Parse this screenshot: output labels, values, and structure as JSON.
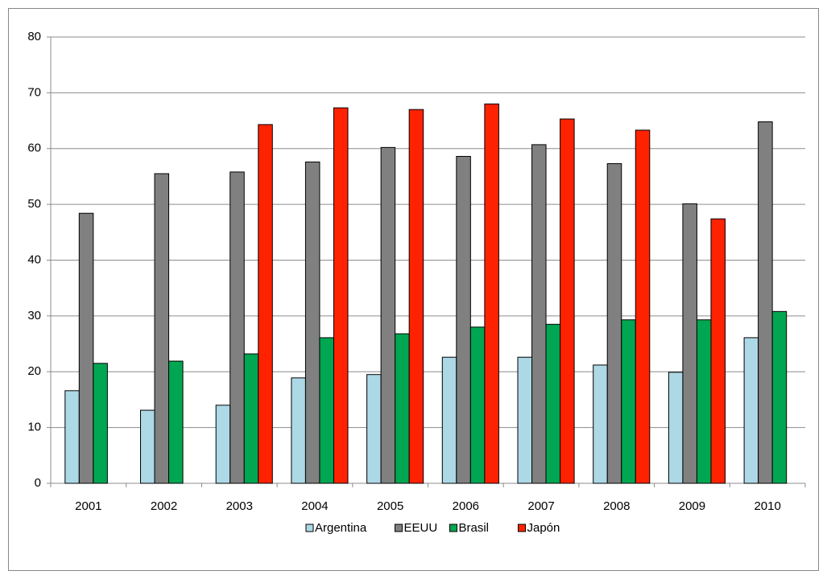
{
  "chart_data": {
    "type": "bar",
    "categories": [
      "2001",
      "2002",
      "2003",
      "2004",
      "2005",
      "2006",
      "2007",
      "2008",
      "2009",
      "2010"
    ],
    "series": [
      {
        "name": "Argentina",
        "color": "#add8e6",
        "values": [
          16.6,
          13.1,
          14.0,
          18.9,
          19.5,
          22.6,
          22.6,
          21.2,
          19.9,
          26.1
        ]
      },
      {
        "name": "EEUU",
        "color": "#808080",
        "values": [
          48.4,
          55.5,
          55.8,
          57.6,
          60.2,
          58.6,
          60.7,
          57.3,
          50.1,
          64.8
        ]
      },
      {
        "name": "Brasil",
        "color": "#00a651",
        "values": [
          21.5,
          21.9,
          23.2,
          26.1,
          26.8,
          28.0,
          28.5,
          29.3,
          29.3,
          30.8
        ]
      },
      {
        "name": "Japón",
        "color": "#ff2200",
        "values": [
          null,
          null,
          64.3,
          67.3,
          67.0,
          68.0,
          65.3,
          63.3,
          47.4,
          null
        ]
      }
    ],
    "ylim": [
      0,
      80
    ],
    "yticks": [
      0,
      10,
      20,
      30,
      40,
      50,
      60,
      70,
      80
    ],
    "grid": true,
    "legend": "bottom"
  }
}
